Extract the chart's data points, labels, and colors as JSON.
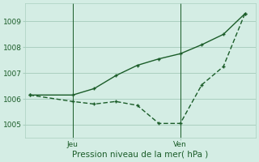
{
  "title": "",
  "xlabel": "Pression niveau de la mer( hPa )",
  "background_color": "#d4ede4",
  "grid_color": "#aacfbf",
  "line_color": "#1a5c28",
  "ylim": [
    1004.5,
    1009.7
  ],
  "yticks": [
    1005,
    1006,
    1007,
    1008,
    1009
  ],
  "x_solid": [
    0,
    2,
    3,
    4,
    5,
    6,
    7,
    8,
    9,
    10
  ],
  "y_solid": [
    1006.15,
    1006.15,
    1006.4,
    1006.9,
    1007.3,
    1007.55,
    1007.75,
    1008.1,
    1008.5,
    1009.3
  ],
  "x_dashed": [
    0,
    2,
    3,
    4,
    5,
    6,
    7,
    8,
    9,
    10
  ],
  "y_dashed": [
    1006.15,
    1005.9,
    1005.8,
    1005.9,
    1005.75,
    1005.05,
    1005.05,
    1006.55,
    1007.25,
    1009.3
  ],
  "vline_x1": 2,
  "vline_x2": 7,
  "xlim": [
    -0.2,
    10.5
  ],
  "figsize": [
    3.2,
    2.0
  ],
  "dpi": 100
}
